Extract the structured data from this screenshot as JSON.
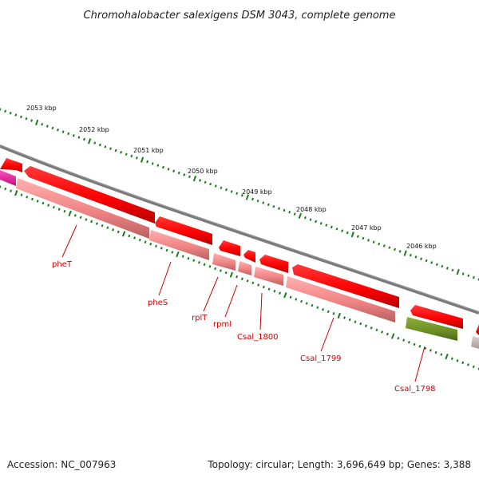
{
  "title": "Chromohalobacter salexigens DSM 3043, complete genome",
  "footer": {
    "accession": "Accession: NC_007963",
    "summary": "Topology: circular; Length: 3,696,649 bp; Genes: 3,388"
  },
  "colors": {
    "backbone": "#808080",
    "tick": "#1a7a1a",
    "gene_red": "#ff0000",
    "gene_red_shadow": "#b00000",
    "cds_pink": "#f08a8a",
    "cds_pink_shadow": "#b86666",
    "gene_green": "#6b8e23",
    "gene_magenta": "#e0199a",
    "gene_gray": "#b8a8a8",
    "label_red": "#cc0000"
  },
  "scale_labels": [
    "2053 kbp",
    "2052 kbp",
    "2051 kbp",
    "2050 kbp",
    "2049 kbp",
    "2048 kbp",
    "2047 kbp",
    "2046 kbp"
  ],
  "gene_labels": [
    "pheT",
    "pheS",
    "rplT",
    "rpmI",
    "Csal_1800",
    "Csal_1799",
    "Csal_1798"
  ]
}
